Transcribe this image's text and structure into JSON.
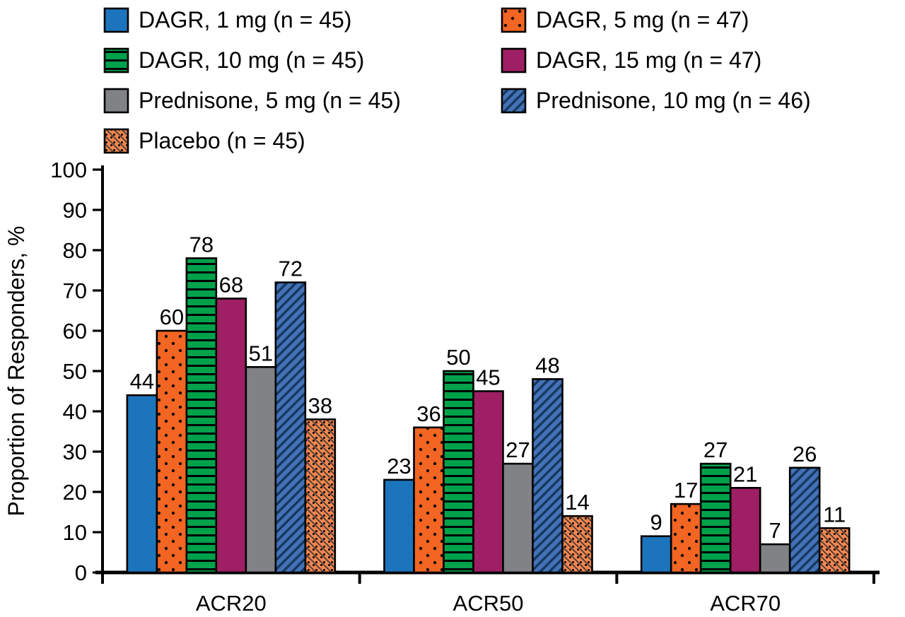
{
  "figure": {
    "background": "#ffffff",
    "text_color": "#000000"
  },
  "chart_data": {
    "type": "bar",
    "title": "",
    "xlabel": "",
    "ylabel": "Proportion of Responders, %",
    "ylim": [
      0,
      100
    ],
    "ytick_step": 10,
    "grid": false,
    "legend_position": "top",
    "categories": [
      "ACR20",
      "ACR50",
      "ACR70"
    ],
    "series": [
      {
        "name": "DAGR, 1 mg (n = 45)",
        "values": [
          44,
          23,
          9
        ],
        "color": "#1C75BC",
        "pattern": "solid"
      },
      {
        "name": "DAGR, 5 mg (n = 47)",
        "values": [
          60,
          36,
          17
        ],
        "color": "#F26522",
        "pattern": "dots",
        "pattern_color": "#000000"
      },
      {
        "name": "DAGR, 10 mg (n = 45)",
        "values": [
          78,
          50,
          27
        ],
        "color": "#00A14B",
        "pattern": "hlines",
        "pattern_color": "#000000"
      },
      {
        "name": "DAGR, 15 mg (n = 47)",
        "values": [
          68,
          45,
          21
        ],
        "color": "#9E1F63",
        "pattern": "solid"
      },
      {
        "name": "Prednisone, 5 mg (n = 45)",
        "values": [
          51,
          27,
          7
        ],
        "color": "#808285",
        "pattern": "solid"
      },
      {
        "name": "Prednisone, 10 mg (n = 46)",
        "values": [
          72,
          48,
          26
        ],
        "color": "#4472B8",
        "pattern": "diag-up",
        "pattern_color": "#17375E"
      },
      {
        "name": "Placebo (n = 45)",
        "values": [
          38,
          14,
          11
        ],
        "color": "#F5854A",
        "pattern": "diag-down-dots",
        "pattern_color": "#404040"
      }
    ]
  }
}
